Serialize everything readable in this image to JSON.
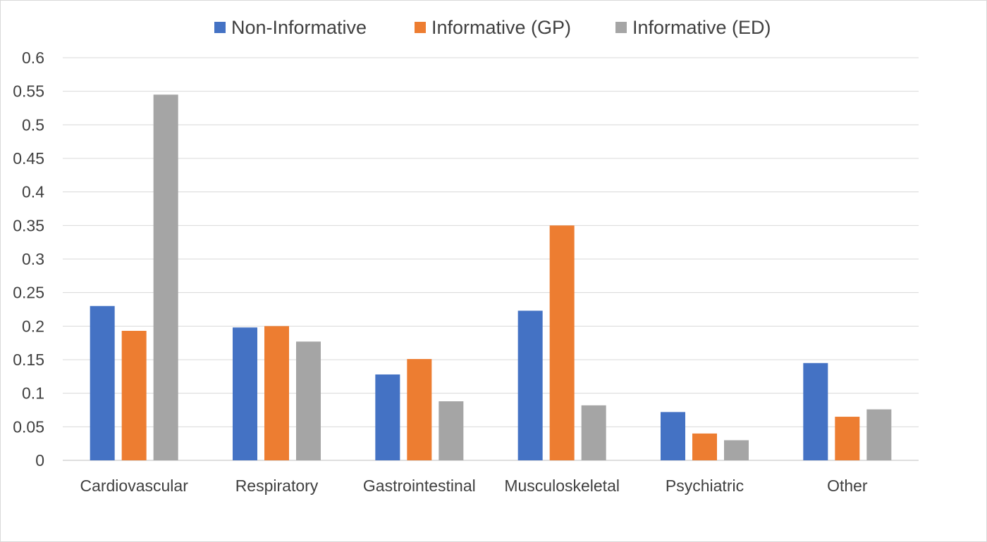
{
  "chart_data": {
    "type": "bar",
    "categories": [
      "Cardiovascular",
      "Respiratory",
      "Gastrointestinal",
      "Musculoskeletal",
      "Psychiatric",
      "Other"
    ],
    "series": [
      {
        "name": "Non-Informative",
        "color": "#4472C4",
        "values": [
          0.23,
          0.198,
          0.128,
          0.223,
          0.072,
          0.145
        ]
      },
      {
        "name": "Informative (GP)",
        "color": "#ED7D31",
        "values": [
          0.193,
          0.2,
          0.151,
          0.35,
          0.04,
          0.065
        ]
      },
      {
        "name": "Informative (ED)",
        "color": "#A5A5A5",
        "values": [
          0.545,
          0.177,
          0.088,
          0.082,
          0.03,
          0.076
        ]
      }
    ],
    "y_ticks": [
      "0",
      "0.05",
      "0.1",
      "0.15",
      "0.2",
      "0.25",
      "0.3",
      "0.35",
      "0.4",
      "0.45",
      "0.5",
      "0.55",
      "0.6"
    ],
    "ylim": [
      0,
      0.6
    ],
    "grid": true,
    "legend_position": "top-center"
  }
}
